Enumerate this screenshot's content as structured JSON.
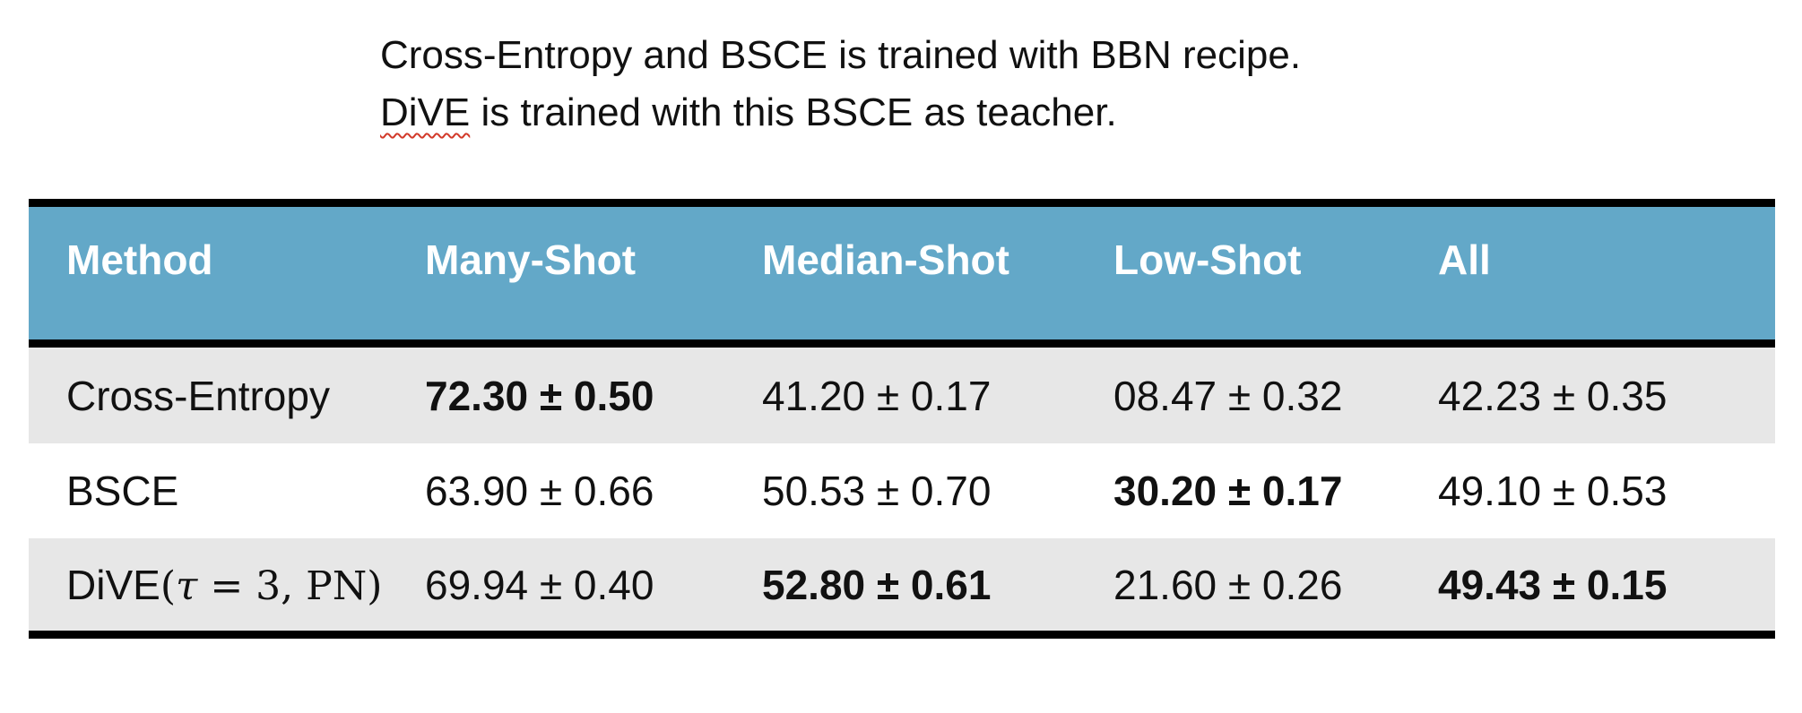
{
  "caption": {
    "line1": "Cross-Entropy and BSCE is trained with BBN recipe.",
    "line2_flagged_word": "DiVE",
    "line2_rest": " is trained with this BSCE as teacher."
  },
  "table": {
    "headers": [
      "Method",
      "Many-Shot",
      "Median-Shot",
      "Low-Shot",
      "All"
    ],
    "rows": [
      {
        "method": "Cross-Entropy",
        "many": "72.30 ± 0.50",
        "median": "41.20 ± 0.17",
        "low": "08.47 ± 0.32",
        "all": "42.23 ± 0.35"
      },
      {
        "method": "BSCE",
        "many": "63.90 ± 0.66",
        "median": "50.53 ± 0.70",
        "low": "30.20 ± 0.17",
        "all": "49.10 ± 0.53"
      },
      {
        "method_prefix": "DiVE",
        "method_math": {
          "open": "(",
          "tau": "τ",
          "eq": " = 3, ",
          "pn": "PN",
          "close": ")"
        },
        "many": "69.94 ± 0.40",
        "median": "52.80 ± 0.61",
        "low": "21.60 ± 0.26",
        "all": "49.43 ± 0.15"
      }
    ],
    "header_color": "#63a8c8",
    "stripe_color": "#e7e7e7"
  }
}
